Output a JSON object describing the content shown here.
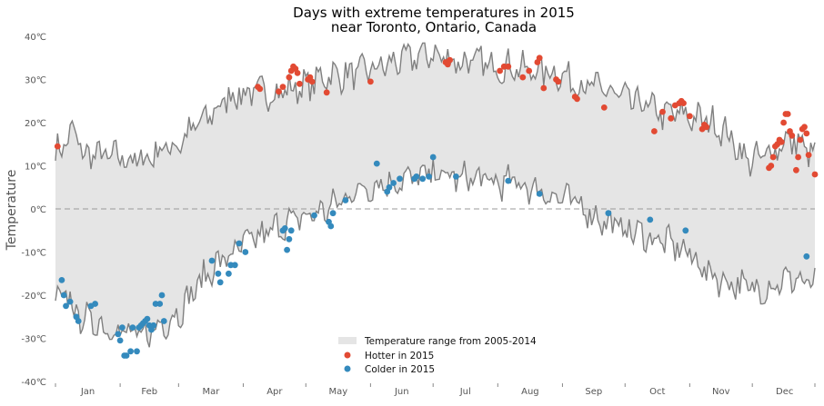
{
  "chart_data": {
    "type": "line",
    "title": "Days with extreme temperatures in 2015",
    "subtitle": "near Toronto, Ontario, Canada",
    "xlabel": "",
    "ylabel": "Temperature",
    "x_tick_labels": [
      "Jan",
      "Feb",
      "Mar",
      "Apr",
      "May",
      "Jun",
      "Jul",
      "Aug",
      "Sep",
      "Oct",
      "Nov",
      "Dec"
    ],
    "y_ticks": [
      -40,
      -30,
      -20,
      -10,
      0,
      10,
      20,
      30,
      40
    ],
    "y_tick_labels": [
      "-40℃",
      "-30℃",
      "-20℃",
      "-10℃",
      "0℃",
      "10℃",
      "20℃",
      "30℃",
      "40℃"
    ],
    "xlim": [
      1,
      365
    ],
    "ylim": [
      -40,
      40
    ],
    "zero_line": true,
    "grid": false,
    "legend_position": "bottom-center",
    "legend": {
      "range": "Temperature range from 2005-2014",
      "hotter": "Hotter in 2015",
      "colder": "Colder in 2015"
    },
    "colors": {
      "range_fill": "#e5e5e5",
      "range_line": "#808080",
      "hotter": "#e24a33",
      "colder": "#348abd",
      "zero_line": "#999999",
      "text": "#555555"
    },
    "record_high_anchors": [
      [
        1,
        13
      ],
      [
        5,
        15
      ],
      [
        10,
        18
      ],
      [
        15,
        12
      ],
      [
        20,
        13
      ],
      [
        25,
        12
      ],
      [
        32,
        12
      ],
      [
        40,
        11
      ],
      [
        46,
        12
      ],
      [
        52,
        14
      ],
      [
        60,
        15
      ],
      [
        68,
        19
      ],
      [
        76,
        22
      ],
      [
        84,
        26
      ],
      [
        92,
        27
      ],
      [
        100,
        27
      ],
      [
        108,
        27
      ],
      [
        116,
        28
      ],
      [
        124,
        29
      ],
      [
        130,
        31
      ],
      [
        140,
        31
      ],
      [
        150,
        32
      ],
      [
        158,
        33
      ],
      [
        164,
        34
      ],
      [
        172,
        35
      ],
      [
        180,
        36
      ],
      [
        188,
        35
      ],
      [
        196,
        34
      ],
      [
        204,
        34
      ],
      [
        212,
        33
      ],
      [
        220,
        33
      ],
      [
        228,
        32
      ],
      [
        236,
        32
      ],
      [
        244,
        31
      ],
      [
        252,
        29
      ],
      [
        260,
        28
      ],
      [
        268,
        27
      ],
      [
        276,
        25
      ],
      [
        284,
        24
      ],
      [
        292,
        22
      ],
      [
        300,
        22
      ],
      [
        308,
        21
      ],
      [
        316,
        20
      ],
      [
        322,
        18
      ],
      [
        328,
        14
      ],
      [
        334,
        11
      ],
      [
        340,
        12
      ],
      [
        346,
        14
      ],
      [
        352,
        16
      ],
      [
        358,
        15
      ],
      [
        365,
        12
      ]
    ],
    "record_low_anchors": [
      [
        1,
        -22
      ],
      [
        6,
        -20
      ],
      [
        12,
        -25
      ],
      [
        18,
        -26
      ],
      [
        24,
        -27
      ],
      [
        30,
        -28
      ],
      [
        36,
        -29
      ],
      [
        42,
        -30
      ],
      [
        48,
        -28
      ],
      [
        54,
        -26
      ],
      [
        60,
        -24
      ],
      [
        66,
        -20
      ],
      [
        72,
        -16
      ],
      [
        78,
        -13
      ],
      [
        84,
        -11
      ],
      [
        90,
        -9
      ],
      [
        96,
        -7
      ],
      [
        102,
        -6
      ],
      [
        108,
        -4
      ],
      [
        114,
        -3
      ],
      [
        120,
        -2
      ],
      [
        126,
        -1
      ],
      [
        132,
        0
      ],
      [
        138,
        2
      ],
      [
        144,
        4
      ],
      [
        150,
        5
      ],
      [
        156,
        6
      ],
      [
        162,
        6
      ],
      [
        168,
        7
      ],
      [
        174,
        7
      ],
      [
        180,
        8
      ],
      [
        186,
        8
      ],
      [
        192,
        7
      ],
      [
        198,
        7
      ],
      [
        204,
        7
      ],
      [
        210,
        6
      ],
      [
        216,
        6
      ],
      [
        222,
        6
      ],
      [
        228,
        5
      ],
      [
        234,
        4
      ],
      [
        240,
        3
      ],
      [
        246,
        2
      ],
      [
        252,
        1
      ],
      [
        258,
        -1
      ],
      [
        264,
        -3
      ],
      [
        270,
        -4
      ],
      [
        276,
        -5
      ],
      [
        282,
        -6
      ],
      [
        288,
        -7
      ],
      [
        294,
        -8
      ],
      [
        300,
        -9
      ],
      [
        306,
        -11
      ],
      [
        312,
        -14
      ],
      [
        318,
        -16
      ],
      [
        324,
        -17
      ],
      [
        330,
        -18
      ],
      [
        336,
        -19
      ],
      [
        342,
        -18
      ],
      [
        348,
        -17
      ],
      [
        354,
        -16
      ],
      [
        360,
        -17
      ],
      [
        365,
        -18
      ]
    ],
    "series": [
      {
        "name": "Hotter in 2015",
        "points": [
          [
            2,
            14.5
          ],
          [
            98,
            28.3
          ],
          [
            99,
            27.8
          ],
          [
            108,
            27.2
          ],
          [
            110,
            28.3
          ],
          [
            113,
            30.5
          ],
          [
            114,
            32
          ],
          [
            115,
            33
          ],
          [
            116,
            32.5
          ],
          [
            117,
            31.5
          ],
          [
            118,
            29
          ],
          [
            122,
            30
          ],
          [
            123,
            30.5
          ],
          [
            124,
            29.5
          ],
          [
            131,
            27
          ],
          [
            152,
            29.5
          ],
          [
            188,
            34
          ],
          [
            189,
            33.5
          ],
          [
            190,
            34.5
          ],
          [
            214,
            32
          ],
          [
            216,
            33
          ],
          [
            218,
            33
          ],
          [
            225,
            30.5
          ],
          [
            228,
            32
          ],
          [
            232,
            34
          ],
          [
            233,
            35
          ],
          [
            235,
            28
          ],
          [
            241,
            30
          ],
          [
            242,
            29.5
          ],
          [
            250,
            26
          ],
          [
            251,
            25.5
          ],
          [
            264,
            23.5
          ],
          [
            288,
            18
          ],
          [
            292,
            22.5
          ],
          [
            296,
            21
          ],
          [
            298,
            24
          ],
          [
            300,
            24.5
          ],
          [
            301,
            25
          ],
          [
            302,
            24.5
          ],
          [
            305,
            21.5
          ],
          [
            311,
            18.5
          ],
          [
            312,
            19.5
          ],
          [
            313,
            19
          ],
          [
            343,
            9.5
          ],
          [
            344,
            10
          ],
          [
            345,
            12
          ],
          [
            346,
            14.5
          ],
          [
            347,
            15
          ],
          [
            348,
            16
          ],
          [
            349,
            15.5
          ],
          [
            350,
            20
          ],
          [
            351,
            22
          ],
          [
            352,
            22
          ],
          [
            353,
            18
          ],
          [
            354,
            17
          ],
          [
            356,
            9
          ],
          [
            357,
            12
          ],
          [
            358,
            16
          ],
          [
            359,
            18.5
          ],
          [
            360,
            19
          ],
          [
            361,
            17.5
          ],
          [
            362,
            12.5
          ],
          [
            365,
            8
          ]
        ]
      },
      {
        "name": "Colder in 2015",
        "points": [
          [
            4,
            -16.5
          ],
          [
            5,
            -20
          ],
          [
            6,
            -22.5
          ],
          [
            8,
            -21.5
          ],
          [
            11,
            -25
          ],
          [
            12,
            -26
          ],
          [
            18,
            -22.5
          ],
          [
            20,
            -22
          ],
          [
            31,
            -29
          ],
          [
            32,
            -30.5
          ],
          [
            33,
            -27.5
          ],
          [
            34,
            -34
          ],
          [
            35,
            -34
          ],
          [
            37,
            -33
          ],
          [
            38,
            -27.5
          ],
          [
            40,
            -33
          ],
          [
            41,
            -27.5
          ],
          [
            42,
            -27
          ],
          [
            43,
            -26.5
          ],
          [
            44,
            -26
          ],
          [
            45,
            -25.5
          ],
          [
            46,
            -27
          ],
          [
            47,
            -28
          ],
          [
            48,
            -27
          ],
          [
            49,
            -22
          ],
          [
            51,
            -22
          ],
          [
            52,
            -20
          ],
          [
            53,
            -26
          ],
          [
            76,
            -12
          ],
          [
            79,
            -15
          ],
          [
            80,
            -17
          ],
          [
            84,
            -15
          ],
          [
            85,
            -13
          ],
          [
            87,
            -13
          ],
          [
            89,
            -8
          ],
          [
            92,
            -10
          ],
          [
            110,
            -5
          ],
          [
            111,
            -4.5
          ],
          [
            112,
            -9.5
          ],
          [
            113,
            -7
          ],
          [
            114,
            -5
          ],
          [
            125,
            -1.5
          ],
          [
            132,
            -3
          ],
          [
            133,
            -4
          ],
          [
            134,
            -1
          ],
          [
            140,
            2
          ],
          [
            155,
            10.5
          ],
          [
            160,
            4
          ],
          [
            161,
            5
          ],
          [
            163,
            6
          ],
          [
            166,
            7
          ],
          [
            173,
            7
          ],
          [
            174,
            7.5
          ],
          [
            177,
            7
          ],
          [
            180,
            7.5
          ],
          [
            182,
            12
          ],
          [
            193,
            7.5
          ],
          [
            218,
            6.5
          ],
          [
            233,
            3.5
          ],
          [
            266,
            -1
          ],
          [
            286,
            -2.5
          ],
          [
            303,
            -5
          ],
          [
            361,
            -11
          ]
        ]
      }
    ]
  }
}
